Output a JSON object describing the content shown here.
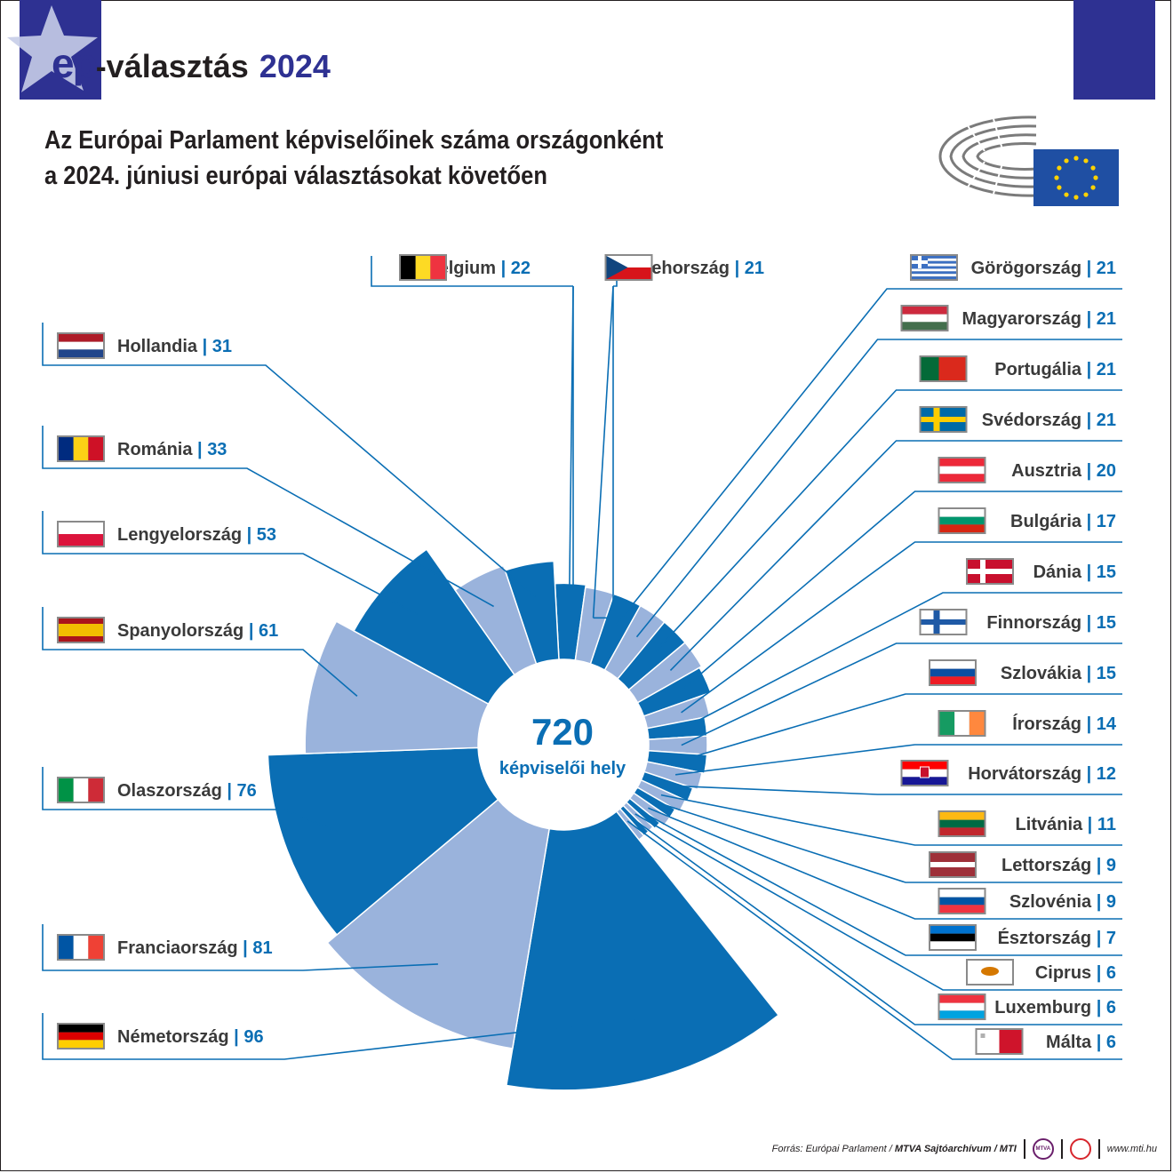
{
  "logo": {
    "ep": "ep",
    "word": "-választás",
    "year": "2024"
  },
  "title": {
    "line1": "Az Európai Parlament képviselőinek száma országonként",
    "line2": "a 2024. júniusi európai választásokat követően"
  },
  "center": {
    "total": "720",
    "caption": "képviselői hely"
  },
  "colors": {
    "dark": "#0a6eb4",
    "light": "#9ab3dc",
    "leader": "#0a6eb4",
    "value_text": "#0a6eb4",
    "band": "#2e3192"
  },
  "chart_data": {
    "type": "pie",
    "variant": "polar-area (rose) chart",
    "total": 720,
    "categories": [
      "Belgium",
      "Csehország",
      "Görögország",
      "Magyarország",
      "Portugália",
      "Svédország",
      "Ausztria",
      "Bulgária",
      "Dánia",
      "Finnország",
      "Szlovákia",
      "Írország",
      "Horvátország",
      "Litvánia",
      "Lettország",
      "Szlovénia",
      "Észtország",
      "Ciprus",
      "Luxemburg",
      "Málta",
      "Németország",
      "Franciaország",
      "Olaszország",
      "Spanyolország",
      "Lengyelország",
      "Románia",
      "Hollandia"
    ],
    "values": [
      22,
      21,
      21,
      21,
      21,
      21,
      20,
      17,
      15,
      15,
      15,
      14,
      12,
      11,
      9,
      9,
      7,
      6,
      6,
      6,
      96,
      81,
      76,
      61,
      53,
      33,
      31
    ],
    "flags": [
      "belgium-flag",
      "czech-flag",
      "greece-flag",
      "hungary-flag",
      "portugal-flag",
      "sweden-flag",
      "austria-flag",
      "bulgaria-flag",
      "denmark-flag",
      "finland-flag",
      "slovakia-flag",
      "ireland-flag",
      "croatia-flag",
      "lithuania-flag",
      "latvia-flag",
      "slovenia-flag",
      "estonia-flag",
      "cyprus-flag",
      "luxembourg-flag",
      "malta-flag",
      "germany-flag",
      "france-flag",
      "italy-flag",
      "spain-flag",
      "poland-flag",
      "romania-flag",
      "netherlands-flag"
    ]
  },
  "source": {
    "prefix": "Forrás: Európai Parlament / ",
    "bold": "MTVA Sajtóarchívum / MTI",
    "mtva_mark": "MTVA",
    "url": "www.mti.hu"
  }
}
